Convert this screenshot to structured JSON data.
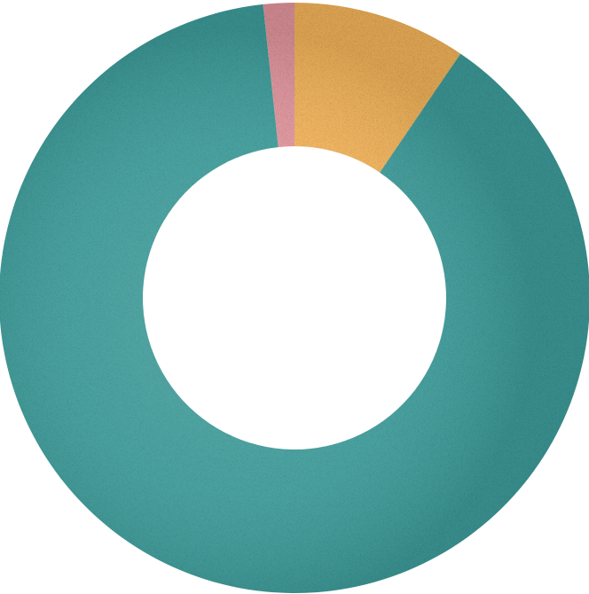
{
  "chart_data": {
    "type": "pie",
    "variant": "donut",
    "title": "",
    "legend": "none",
    "start": "top",
    "direction": "clockwise",
    "slices": [
      {
        "value": 9.5,
        "color": "#F2B35A"
      },
      {
        "value": 88.8,
        "color": "#3E9C9A"
      },
      {
        "value": 1.7,
        "color": "#E0959C"
      }
    ]
  }
}
